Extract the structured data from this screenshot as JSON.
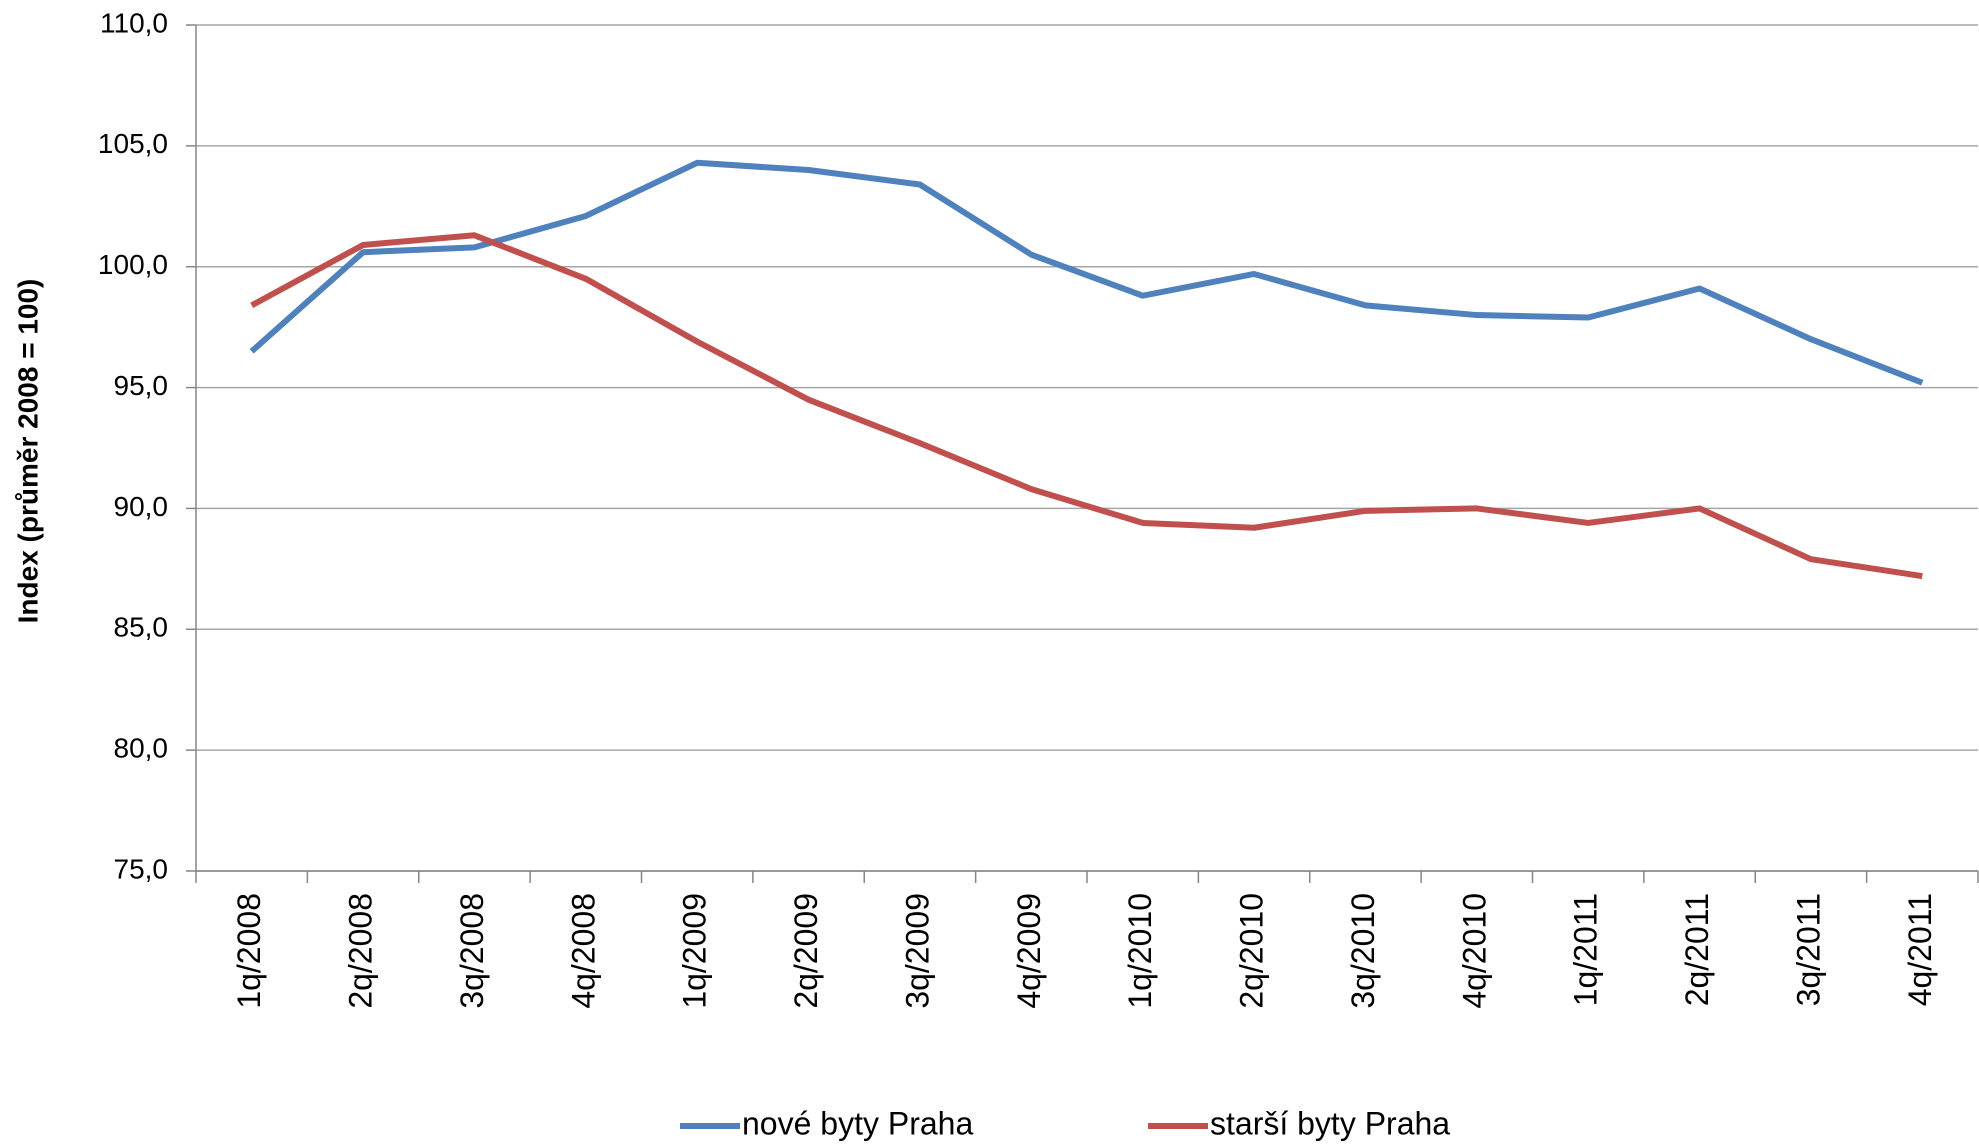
{
  "chart_data": {
    "type": "line",
    "y_label": "Index (průměr 2008 = 100)",
    "categories": [
      "1q/2008",
      "2q/2008",
      "3q/2008",
      "4q/2008",
      "1q/2009",
      "2q/2009",
      "3q/2009",
      "4q/2009",
      "1q/2010",
      "2q/2010",
      "3q/2010",
      "4q/2010",
      "1q/2011",
      "2q/2011",
      "3q/2011",
      "4q/2011"
    ],
    "series": [
      {
        "name": "nové byty Praha",
        "color": "#4f81bd",
        "values": [
          96.5,
          100.6,
          100.8,
          102.1,
          104.3,
          104.0,
          103.4,
          100.5,
          98.8,
          99.7,
          98.4,
          98.0,
          97.9,
          99.1,
          97.0,
          95.2
        ]
      },
      {
        "name": "starší byty Praha",
        "color": "#c0504d",
        "values": [
          98.4,
          100.9,
          101.3,
          99.5,
          96.9,
          94.5,
          92.7,
          90.8,
          89.4,
          89.2,
          89.9,
          90.0,
          89.4,
          90.0,
          87.9,
          87.2
        ]
      }
    ],
    "ylim": [
      75,
      110
    ],
    "yticks": [
      {
        "value": 75,
        "label": "75,0"
      },
      {
        "value": 80,
        "label": "80,0"
      },
      {
        "value": 85,
        "label": "85,0"
      },
      {
        "value": 90,
        "label": "90,0"
      },
      {
        "value": 95,
        "label": "95,0"
      },
      {
        "value": 100,
        "label": "100,0"
      },
      {
        "value": 105,
        "label": "105,0"
      },
      {
        "value": 110,
        "label": "110,0"
      }
    ],
    "grid": true,
    "legend": "bottom"
  }
}
